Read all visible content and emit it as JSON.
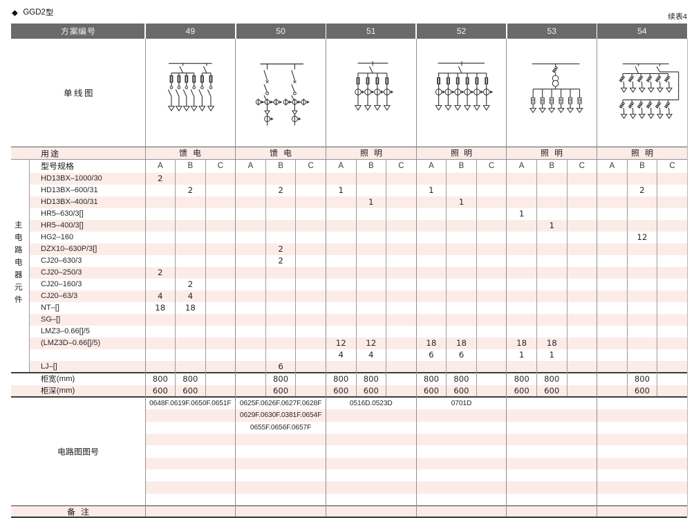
{
  "page": {
    "title": "◆ GGD2型",
    "continued_note": "续表4"
  },
  "table": {
    "header": {
      "label": "方案编号",
      "schemes": [
        "49",
        "50",
        "51",
        "52",
        "53",
        "54"
      ]
    },
    "diagram_row": {
      "label": "单线图",
      "diagrams": [
        "scheme-49-feeder-single-line-diagram",
        "scheme-50-feeder-single-line-diagram",
        "scheme-51-lighting-single-line-diagram",
        "scheme-52-lighting-single-line-diagram",
        "scheme-53-lighting-single-line-diagram",
        "scheme-54-lighting-single-line-diagram"
      ]
    },
    "usage_row": {
      "label": "用途",
      "values": [
        "馈 电",
        "馈 电",
        "照 明",
        "照 明",
        "照 明",
        "照 明"
      ]
    },
    "spec_header_row": {
      "label": "型号规格",
      "subcols": [
        "A",
        "B",
        "C"
      ]
    },
    "left_group_label": "主电路电器元件",
    "component_rows": [
      {
        "label": "HD13BX–1000/30",
        "values": [
          "2",
          "",
          "",
          "",
          "",
          "",
          "",
          "",
          "",
          "",
          "",
          "",
          "",
          "",
          "",
          "",
          "",
          ""
        ]
      },
      {
        "label": "HD13BX–600/31",
        "values": [
          "",
          "2",
          "",
          "",
          "2",
          "",
          "1",
          "",
          "",
          "1",
          "",
          "",
          "",
          "",
          "",
          "",
          "2",
          ""
        ]
      },
      {
        "label": "HD13BX–400/31",
        "values": [
          "",
          "",
          "",
          "",
          "",
          "",
          "",
          "1",
          "",
          "",
          "1",
          "",
          "",
          "",
          "",
          "",
          "",
          ""
        ]
      },
      {
        "label": "HR5–630/3[]",
        "values": [
          "",
          "",
          "",
          "",
          "",
          "",
          "",
          "",
          "",
          "",
          "",
          "",
          "1",
          "",
          "",
          "",
          "",
          ""
        ]
      },
      {
        "label": "HR5–400/3[]",
        "values": [
          "",
          "",
          "",
          "",
          "",
          "",
          "",
          "",
          "",
          "",
          "",
          "",
          "",
          "1",
          "",
          "",
          "",
          ""
        ]
      },
      {
        "label": "HG2–160",
        "values": [
          "",
          "",
          "",
          "",
          "",
          "",
          "",
          "",
          "",
          "",
          "",
          "",
          "",
          "",
          "",
          "",
          "12",
          ""
        ]
      },
      {
        "label": "DZX10–630P/3[]",
        "values": [
          "",
          "",
          "",
          "",
          "2",
          "",
          "",
          "",
          "",
          "",
          "",
          "",
          "",
          "",
          "",
          "",
          "",
          ""
        ]
      },
      {
        "label": "CJ20–630/3",
        "values": [
          "",
          "",
          "",
          "",
          "2",
          "",
          "",
          "",
          "",
          "",
          "",
          "",
          "",
          "",
          "",
          "",
          "",
          ""
        ]
      },
      {
        "label": "CJ20–250/3",
        "values": [
          "2",
          "",
          "",
          "",
          "",
          "",
          "",
          "",
          "",
          "",
          "",
          "",
          "",
          "",
          "",
          "",
          "",
          ""
        ]
      },
      {
        "label": "CJ20–160/3",
        "values": [
          "",
          "2",
          "",
          "",
          "",
          "",
          "",
          "",
          "",
          "",
          "",
          "",
          "",
          "",
          "",
          "",
          "",
          ""
        ]
      },
      {
        "label": "CJ20–63/3",
        "values": [
          "4",
          "4",
          "",
          "",
          "",
          "",
          "",
          "",
          "",
          "",
          "",
          "",
          "",
          "",
          "",
          "",
          "",
          ""
        ]
      },
      {
        "label": "NT–[]",
        "values": [
          "18",
          "18",
          "",
          "",
          "",
          "",
          "",
          "",
          "",
          "",
          "",
          "",
          "",
          "",
          "",
          "",
          "",
          ""
        ]
      },
      {
        "label": "SG–[]",
        "values": [
          "",
          "",
          "",
          "",
          "",
          "",
          "",
          "",
          "",
          "",
          "",
          "",
          "",
          "",
          "",
          "",
          "",
          ""
        ]
      },
      {
        "label": "LMZ3–0.66[]/5",
        "values": [
          "",
          "",
          "",
          "",
          "",
          "",
          "",
          "",
          "",
          "",
          "",
          "",
          "",
          "",
          "",
          "",
          "",
          ""
        ]
      },
      {
        "label": "(LMZ3D–0.66[]/5)",
        "values": [
          "",
          "",
          "",
          "",
          "",
          "",
          "12",
          "12",
          "",
          "18",
          "18",
          "",
          "18",
          "18",
          "",
          "",
          "",
          ""
        ]
      },
      {
        "label": "",
        "values": [
          "",
          "",
          "",
          "",
          "",
          "",
          "4",
          "4",
          "",
          "6",
          "6",
          "",
          "1",
          "1",
          "",
          "",
          "",
          ""
        ]
      },
      {
        "label": "LJ–[]",
        "values": [
          "",
          "",
          "",
          "",
          "6",
          "",
          "",
          "",
          "",
          "",
          "",
          "",
          "",
          "",
          "",
          "",
          "",
          ""
        ]
      }
    ],
    "cabinet_width_row": {
      "label": "柜宽(mm)",
      "values": [
        "800",
        "800",
        "",
        "",
        "800",
        "",
        "800",
        "800",
        "",
        "800",
        "800",
        "",
        "800",
        "800",
        "",
        "",
        "800",
        ""
      ]
    },
    "cabinet_depth_row": {
      "label": "柜深(mm)",
      "values": [
        "600",
        "600",
        "",
        "",
        "600",
        "",
        "600",
        "600",
        "",
        "600",
        "600",
        "",
        "600",
        "600",
        "",
        "",
        "600",
        ""
      ]
    },
    "drawing_section": {
      "label": "电路图图号",
      "rows": [
        [
          "0648F.0619F.0650F.0651F",
          "0625F.0626F.0627F.0628F",
          "0516D.0523D",
          "0701D",
          "",
          ""
        ],
        [
          "",
          "0629F.0630F.0381F.0654F",
          "",
          "",
          "",
          ""
        ],
        [
          "",
          "0655F.0656F.0657F",
          "",
          "",
          "",
          ""
        ],
        [
          "",
          "",
          "",
          "",
          "",
          ""
        ],
        [
          "",
          "",
          "",
          "",
          "",
          ""
        ],
        [
          "",
          "",
          "",
          "",
          "",
          ""
        ],
        [
          "",
          "",
          "",
          "",
          "",
          ""
        ],
        [
          "",
          "",
          "",
          "",
          "",
          ""
        ],
        [
          "",
          "",
          "",
          "",
          "",
          ""
        ]
      ]
    },
    "remark_row": {
      "label": "备 注"
    }
  },
  "colors": {
    "stripe_pink": "#fcebe5",
    "header_gray": "#6a6a6a",
    "line_dark": "#3c3c3c",
    "line_gray": "#9b9b9b",
    "text": "#2e2e2e"
  }
}
